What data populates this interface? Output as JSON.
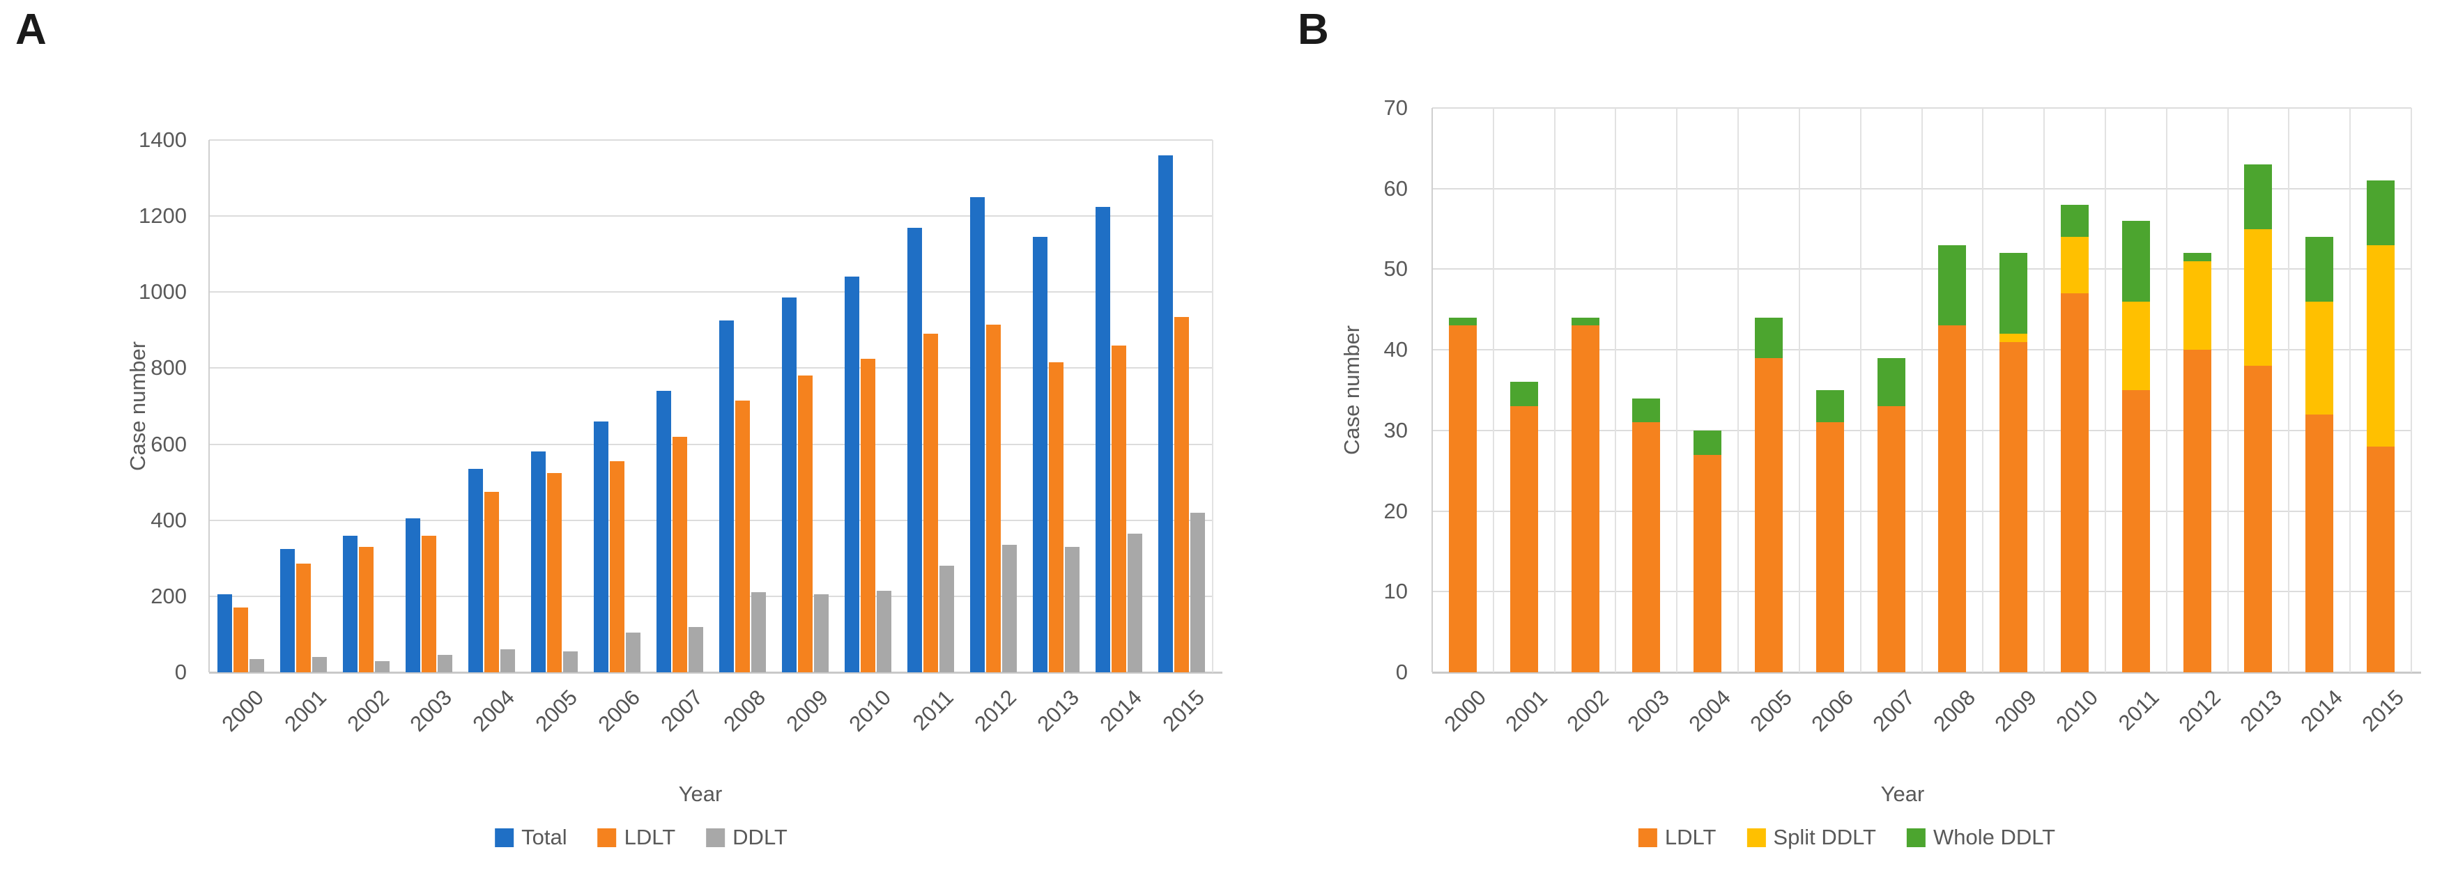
{
  "page": {
    "background": "#ffffff",
    "panels": [
      {
        "label": "A"
      },
      {
        "label": "B"
      }
    ]
  },
  "chart_data": [
    {
      "type": "bar",
      "panel_label": "A",
      "title": "",
      "xlabel": "Year",
      "ylabel": "Case number",
      "ylim": [
        0,
        1400
      ],
      "yticks": [
        0,
        200,
        400,
        600,
        800,
        1000,
        1200,
        1400
      ],
      "grid": "horizontal",
      "legend_position": "bottom",
      "categories": [
        "2000",
        "2001",
        "2002",
        "2003",
        "2004",
        "2005",
        "2006",
        "2007",
        "2008",
        "2009",
        "2010",
        "2011",
        "2012",
        "2013",
        "2014",
        "2015"
      ],
      "series": [
        {
          "name": "Total",
          "color": "#1F6FC5",
          "values": [
            205,
            325,
            360,
            405,
            535,
            580,
            660,
            740,
            925,
            985,
            1040,
            1170,
            1250,
            1145,
            1225,
            1360
          ]
        },
        {
          "name": "LDLT",
          "color": "#F5821E",
          "values": [
            170,
            285,
            330,
            360,
            475,
            525,
            555,
            620,
            715,
            780,
            825,
            890,
            915,
            815,
            860,
            935
          ]
        },
        {
          "name": "DDLT",
          "color": "#A8A8A8",
          "values": [
            35,
            40,
            30,
            45,
            60,
            55,
            105,
            120,
            210,
            205,
            215,
            280,
            335,
            330,
            365,
            420
          ]
        }
      ]
    },
    {
      "type": "stacked-bar",
      "panel_label": "B",
      "title": "",
      "xlabel": "Year",
      "ylabel": "Case number",
      "ylim": [
        0,
        70
      ],
      "yticks": [
        0,
        10,
        20,
        30,
        40,
        50,
        60,
        70
      ],
      "grid": "both",
      "legend_position": "bottom",
      "categories": [
        "2000",
        "2001",
        "2002",
        "2003",
        "2004",
        "2005",
        "2006",
        "2007",
        "2008",
        "2009",
        "2010",
        "2011",
        "2012",
        "2013",
        "2014",
        "2015"
      ],
      "series": [
        {
          "name": "LDLT",
          "color": "#F5821E",
          "values": [
            43,
            33,
            43,
            31,
            27,
            39,
            31,
            33,
            43,
            41,
            47,
            35,
            40,
            38,
            32,
            28
          ]
        },
        {
          "name": "Split DDLT",
          "color": "#FFC000",
          "values": [
            0,
            0,
            0,
            0,
            0,
            0,
            0,
            0,
            0,
            1,
            7,
            11,
            11,
            17,
            14,
            25
          ]
        },
        {
          "name": "Whole DDLT",
          "color": "#4CA52F",
          "values": [
            1,
            3,
            1,
            3,
            3,
            5,
            4,
            6,
            10,
            10,
            4,
            10,
            1,
            8,
            8,
            8
          ]
        }
      ]
    }
  ]
}
